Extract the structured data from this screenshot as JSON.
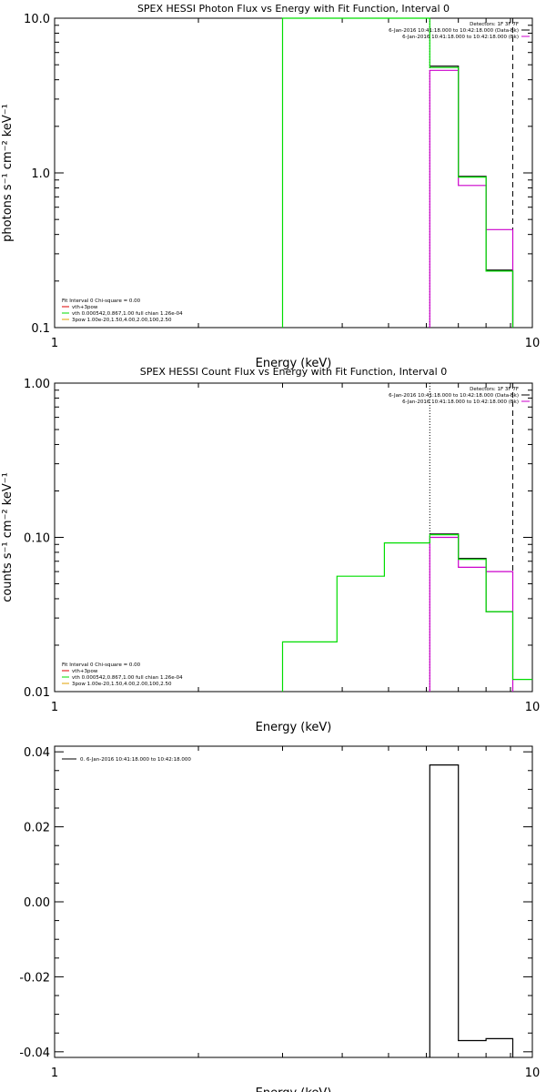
{
  "colors": {
    "black": "#000000",
    "magenta": "#cc00cc",
    "green": "#00dd00",
    "red": "#dd0000",
    "orange": "#e0a000"
  },
  "chart_data": [
    {
      "type": "line",
      "title": "SPEX HESSI Photon Flux vs Energy with Fit Function, Interval 0",
      "xlabel": "Energy (keV)",
      "ylabel": "photons s⁻¹ cm⁻² keV⁻¹",
      "xscale": "log",
      "yscale": "log",
      "xlim": [
        1,
        10
      ],
      "ylim": [
        0.1,
        10
      ],
      "xtick_labels": [
        {
          "v": 1,
          "label": "1"
        },
        {
          "v": 10,
          "label": "10"
        }
      ],
      "ytick_labels": [
        {
          "v": 0.1,
          "label": "0.1"
        },
        {
          "v": 1,
          "label": "1.0"
        },
        {
          "v": 10,
          "label": "10.0"
        }
      ],
      "legend_right": [
        "Detectors: 1F 3F 7F",
        "6-Jan-2016 10:41:18.000 to 10:42:18.000 (Data-Bk)",
        "6-Jan-2016 10:41:18.000 to 10:42:18.000 (Bk)"
      ],
      "legend_left": [
        "Fit Interval 0   Chi-square = 0.00",
        "vth+3pow",
        "vth 0.000542,0.867,1.00  full chian 1.26e-04",
        "3pow 1.00e-20,1.50,4.00,2.00,100,2.50"
      ],
      "vlines": [
        {
          "x": 6.1,
          "style": "dotted"
        },
        {
          "x": 9.1,
          "style": "dashed"
        }
      ],
      "series": [
        {
          "name": "vth+3pow",
          "color": "black",
          "x": [
            6.1,
            7.0,
            7.0,
            8.0,
            8.0,
            9.1,
            9.1
          ],
          "y": [
            4.9,
            4.9,
            0.95,
            0.95,
            0.235,
            0.235,
            0.1
          ]
        },
        {
          "name": "(Bk)",
          "color": "magenta",
          "x": [
            6.1,
            6.1,
            7.0,
            7.0,
            8.0,
            8.0,
            9.1,
            9.1
          ],
          "y": [
            0.1,
            4.6,
            4.6,
            0.83,
            0.83,
            0.43,
            0.43,
            0.1
          ]
        },
        {
          "name": "vth",
          "color": "green",
          "x": [
            3.0,
            3.0,
            6.1,
            6.1,
            7.0,
            7.0,
            8.0,
            8.0,
            9.1,
            9.1
          ],
          "y": [
            0.1,
            10,
            10,
            4.8,
            4.8,
            0.94,
            0.94,
            0.232,
            0.232,
            0.1
          ]
        }
      ]
    },
    {
      "type": "line",
      "title": "SPEX HESSI Count Flux vs Energy with Fit Function, Interval 0",
      "xlabel": "Energy (keV)",
      "ylabel": "counts s⁻¹ cm⁻² keV⁻¹",
      "xscale": "log",
      "yscale": "log",
      "xlim": [
        1,
        10
      ],
      "ylim": [
        0.01,
        1
      ],
      "xtick_labels": [
        {
          "v": 1,
          "label": "1"
        },
        {
          "v": 10,
          "label": "10"
        }
      ],
      "ytick_labels": [
        {
          "v": 0.01,
          "label": "0.01"
        },
        {
          "v": 0.1,
          "label": "0.10"
        },
        {
          "v": 1,
          "label": "1.00"
        }
      ],
      "legend_right": [
        "Detectors: 1F 3F 7F",
        "6-Jan-2016 10:41:18.000 to 10:42:18.000 (Data-Bk)",
        "6-Jan-2016 10:41:18.000 to 10:42:18.000 (Bk)"
      ],
      "legend_left": [
        "Fit Interval 0   Chi-square = 0.00",
        "vth+3pow",
        "vth 0.000542,0.867,1.00  full chian 1.26e-04",
        "3pow 1.00e-20,1.50,4.00,2.00,100,2.50"
      ],
      "vlines": [
        {
          "x": 6.1,
          "style": "dotted"
        },
        {
          "x": 9.1,
          "style": "dashed"
        }
      ],
      "series": [
        {
          "name": "vth+3pow",
          "color": "black",
          "x": [
            6.1,
            7.0,
            7.0,
            8.0,
            8.0,
            9.1
          ],
          "y": [
            0.105,
            0.105,
            0.073,
            0.073,
            0.033,
            0.033
          ]
        },
        {
          "name": "(Bk)",
          "color": "magenta",
          "x": [
            6.1,
            6.1,
            7.0,
            7.0,
            8.0,
            8.0,
            9.1,
            9.1
          ],
          "y": [
            0.01,
            0.1,
            0.1,
            0.064,
            0.064,
            0.06,
            0.06,
            0.01
          ]
        },
        {
          "name": "vth",
          "color": "green",
          "x": [
            3.0,
            3.0,
            3.9,
            3.9,
            4.9,
            4.9,
            6.1,
            6.1,
            7.0,
            7.0,
            8.0,
            8.0,
            9.1,
            9.1,
            10
          ],
          "y": [
            0.01,
            0.021,
            0.021,
            0.056,
            0.056,
            0.092,
            0.092,
            0.104,
            0.104,
            0.072,
            0.072,
            0.033,
            0.033,
            0.012,
            0.012
          ]
        }
      ]
    },
    {
      "type": "line",
      "title": "",
      "xlabel": "Energy (keV)",
      "ylabel": "",
      "xscale": "log",
      "yscale": "linear",
      "xlim": [
        1,
        10
      ],
      "ylim": [
        -0.0415,
        0.0415
      ],
      "xtick_labels": [
        {
          "v": 1,
          "label": "1"
        },
        {
          "v": 10,
          "label": "10"
        }
      ],
      "ytick_labels": [
        {
          "v": -0.04,
          "label": "-0.04"
        },
        {
          "v": -0.02,
          "label": "-0.02"
        },
        {
          "v": 0,
          "label": "0.00"
        },
        {
          "v": 0.02,
          "label": "0.02"
        },
        {
          "v": 0.04,
          "label": "0.04"
        }
      ],
      "legend_left": [
        "0.  6-Jan-2016 10:41:18.000 to 10:42:18.000"
      ],
      "series": [
        {
          "name": "0.",
          "color": "black",
          "x": [
            6.1,
            6.1,
            7.0,
            7.0,
            8.0,
            8.0,
            9.1,
            9.1
          ],
          "y": [
            -0.0415,
            0.0365,
            0.0365,
            -0.037,
            -0.037,
            -0.0365,
            -0.0365,
            -0.0415
          ]
        }
      ]
    }
  ]
}
